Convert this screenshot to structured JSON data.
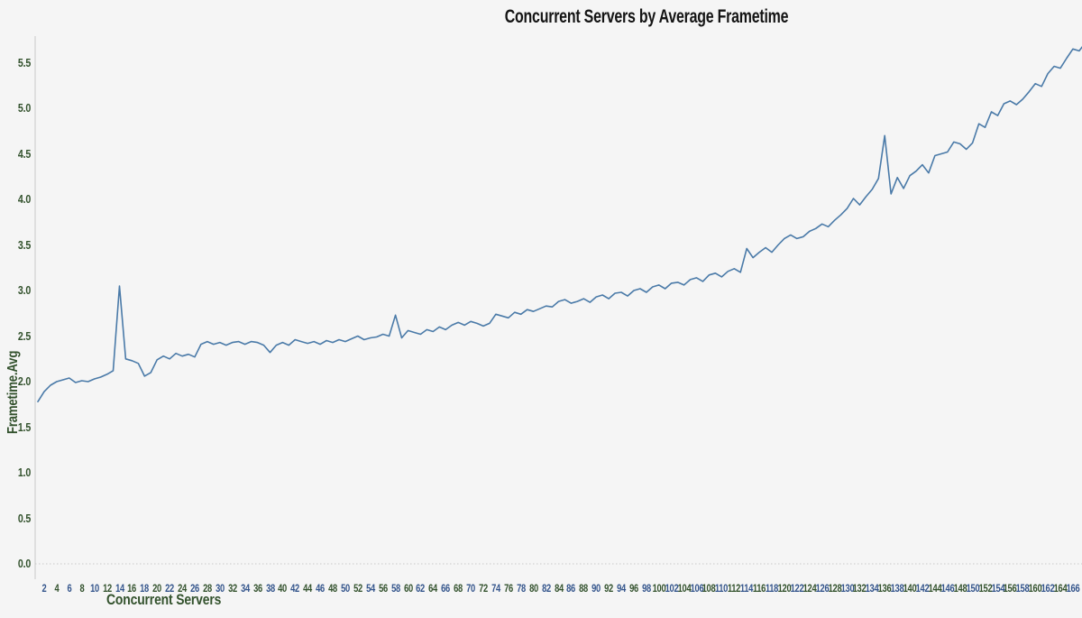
{
  "title": "Concurrent Servers by Average Frametime",
  "colors": {
    "background": "#f5f5f5",
    "line": "#4a7aa8",
    "axis_line": "#c9c9c9",
    "zero_gridline": "#c9c9c9",
    "title_text": "#141414",
    "green_label": "#33522d",
    "blue_label": "#34558c"
  },
  "chart_data": {
    "type": "line",
    "title": "Concurrent Servers by Average Frametime",
    "xlabel": "Concurrent Servers",
    "ylabel": "Frametime.Avg",
    "legend": "none",
    "grid": "none (dotted baseline at y=0 only)",
    "xlim": [
      1,
      168
    ],
    "ylim": [
      0.0,
      5.75
    ],
    "y_tick_labels": [
      "0.0",
      "0.5",
      "1.0",
      "1.5",
      "2.0",
      "2.5",
      "3.0",
      "3.5",
      "4.0",
      "4.5",
      "5.0",
      "5.5"
    ],
    "x_tick_labels": [
      2,
      4,
      6,
      8,
      10,
      12,
      14,
      16,
      18,
      20,
      22,
      24,
      26,
      28,
      30,
      32,
      34,
      36,
      38,
      40,
      42,
      44,
      46,
      48,
      50,
      52,
      54,
      56,
      58,
      60,
      62,
      64,
      66,
      68,
      70,
      72,
      74,
      76,
      78,
      80,
      82,
      84,
      86,
      88,
      90,
      92,
      94,
      96,
      98,
      100,
      102,
      104,
      106,
      108,
      110,
      112,
      114,
      116,
      118,
      120,
      122,
      124,
      126,
      128,
      130,
      132,
      134,
      136,
      138,
      140,
      142,
      144,
      146,
      148,
      150,
      152,
      154,
      156,
      158,
      160,
      162,
      164,
      166
    ],
    "x_tick_color_pattern": "alternating blue/green starting blue at 2",
    "x": [
      1,
      2,
      3,
      4,
      5,
      6,
      7,
      8,
      9,
      10,
      11,
      12,
      13,
      14,
      15,
      16,
      17,
      18,
      19,
      20,
      21,
      22,
      23,
      24,
      25,
      26,
      27,
      28,
      29,
      30,
      31,
      32,
      33,
      34,
      35,
      36,
      37,
      38,
      39,
      40,
      41,
      42,
      43,
      44,
      45,
      46,
      47,
      48,
      49,
      50,
      51,
      52,
      53,
      54,
      55,
      56,
      57,
      58,
      59,
      60,
      61,
      62,
      63,
      64,
      65,
      66,
      67,
      68,
      69,
      70,
      71,
      72,
      73,
      74,
      75,
      76,
      77,
      78,
      79,
      80,
      81,
      82,
      83,
      84,
      85,
      86,
      87,
      88,
      89,
      90,
      91,
      92,
      93,
      94,
      95,
      96,
      97,
      98,
      99,
      100,
      101,
      102,
      103,
      104,
      105,
      106,
      107,
      108,
      109,
      110,
      111,
      112,
      113,
      114,
      115,
      116,
      117,
      118,
      119,
      120,
      121,
      122,
      123,
      124,
      125,
      126,
      127,
      128,
      129,
      130,
      131,
      132,
      133,
      134,
      135,
      136,
      137,
      138,
      139,
      140,
      141,
      142,
      143,
      144,
      145,
      146,
      147,
      148,
      149,
      150,
      151,
      152,
      153,
      154,
      155,
      156,
      157,
      158,
      159,
      160,
      161,
      162,
      163,
      164,
      165,
      166,
      167,
      168
    ],
    "values": [
      1.78,
      1.89,
      1.96,
      2.0,
      2.02,
      2.04,
      1.99,
      2.01,
      2.0,
      2.03,
      2.05,
      2.08,
      2.12,
      3.05,
      2.25,
      2.23,
      2.2,
      2.06,
      2.1,
      2.24,
      2.28,
      2.25,
      2.31,
      2.28,
      2.3,
      2.27,
      2.41,
      2.44,
      2.41,
      2.43,
      2.4,
      2.43,
      2.44,
      2.41,
      2.44,
      2.43,
      2.4,
      2.32,
      2.4,
      2.43,
      2.4,
      2.46,
      2.44,
      2.42,
      2.44,
      2.41,
      2.45,
      2.43,
      2.46,
      2.44,
      2.47,
      2.5,
      2.46,
      2.48,
      2.49,
      2.52,
      2.5,
      2.73,
      2.48,
      2.56,
      2.54,
      2.52,
      2.57,
      2.55,
      2.6,
      2.57,
      2.62,
      2.65,
      2.62,
      2.66,
      2.64,
      2.61,
      2.64,
      2.74,
      2.72,
      2.7,
      2.76,
      2.74,
      2.79,
      2.77,
      2.8,
      2.83,
      2.82,
      2.88,
      2.9,
      2.86,
      2.88,
      2.91,
      2.87,
      2.93,
      2.95,
      2.91,
      2.97,
      2.98,
      2.94,
      3.0,
      3.02,
      2.98,
      3.04,
      3.06,
      3.02,
      3.08,
      3.09,
      3.06,
      3.12,
      3.14,
      3.1,
      3.17,
      3.19,
      3.15,
      3.21,
      3.24,
      3.2,
      3.46,
      3.36,
      3.42,
      3.47,
      3.42,
      3.5,
      3.57,
      3.61,
      3.57,
      3.59,
      3.65,
      3.68,
      3.73,
      3.7,
      3.77,
      3.83,
      3.9,
      4.01,
      3.94,
      4.03,
      4.11,
      4.23,
      4.7,
      4.06,
      4.24,
      4.12,
      4.26,
      4.31,
      4.38,
      4.29,
      4.48,
      4.5,
      4.52,
      4.63,
      4.61,
      4.55,
      4.62,
      4.83,
      4.79,
      4.96,
      4.92,
      5.05,
      5.08,
      5.04,
      5.1,
      5.18,
      5.27,
      5.24,
      5.38,
      5.46,
      5.44,
      5.55,
      5.65,
      5.63,
      5.72
    ],
    "notable_points": {
      "spike_1": {
        "x": 14,
        "value": 3.05
      },
      "spike_2": {
        "x": 58,
        "value": 2.73
      },
      "spike_3": {
        "x": 136,
        "value": 4.7
      }
    }
  }
}
